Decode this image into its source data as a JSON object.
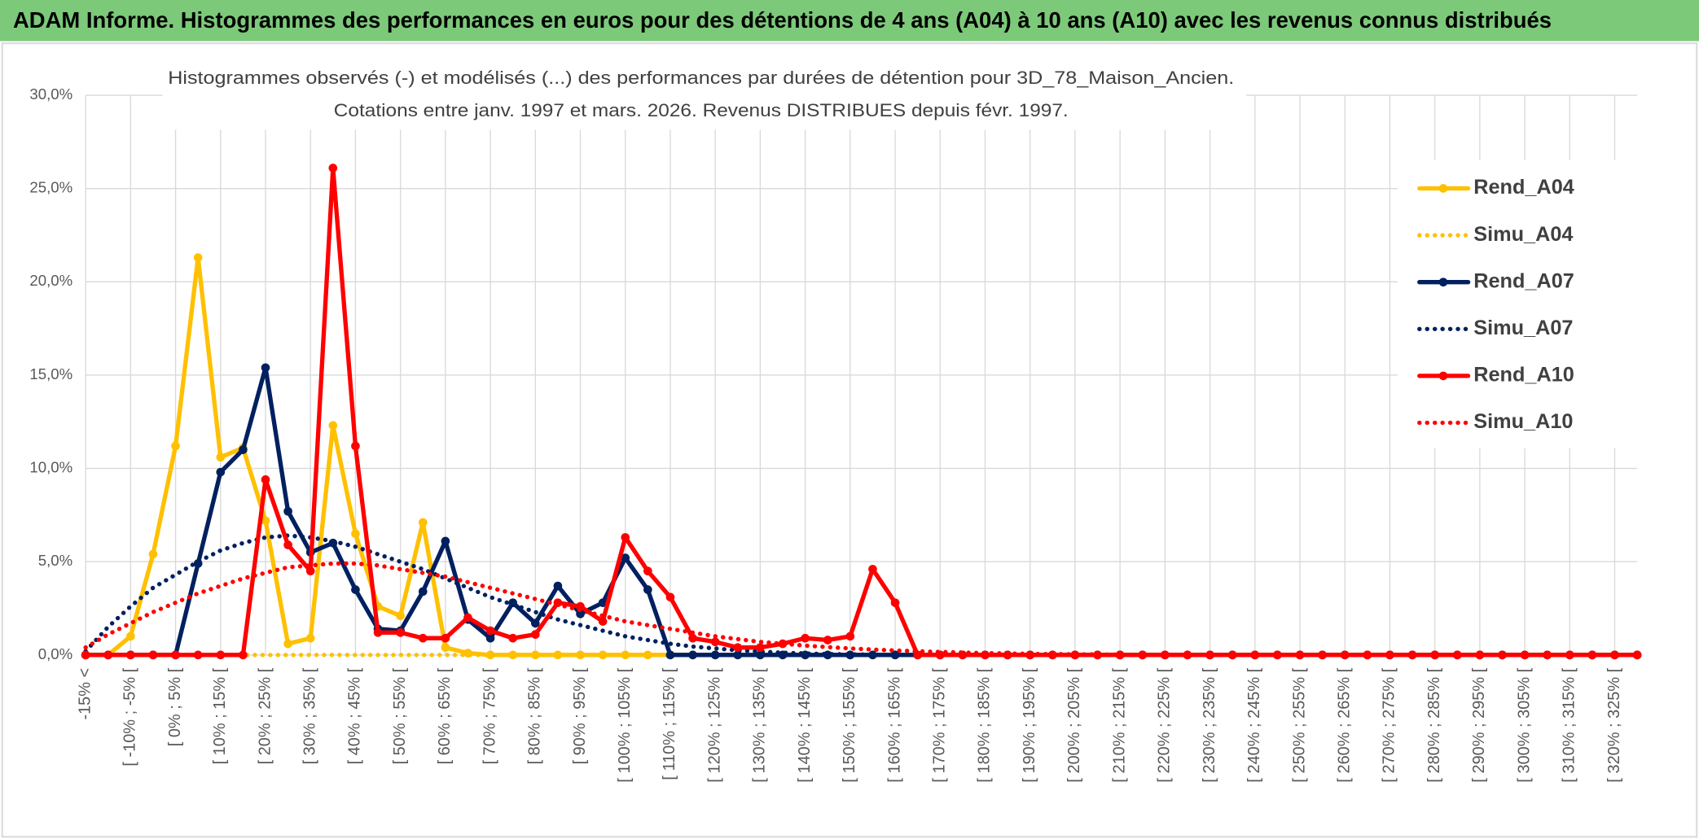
{
  "chart_data": {
    "type": "line",
    "title": "ADAM Informe. Histogrammes des performances en euros pour des détentions de 4 ans (A04) à 10 ans (A10) avec les revenus connus distribués",
    "subtitle": [
      "Histogrammes observés (-) et modélisés (...) des performances par durées de détention pour 3D_78_Maison_Ancien.",
      "Cotations entre janv. 1997 et mars. 2026. Revenus DISTRIBUES depuis févr. 1997."
    ],
    "categories": [
      "-15% <",
      null,
      "[ -10% ; -5% [",
      null,
      "[ 0% ; 5% [",
      null,
      "[ 10% ; 15% [",
      null,
      "[ 20% ; 25% [",
      null,
      "[ 30% ; 35% [",
      null,
      "[ 40% ; 45% [",
      null,
      "[ 50% ; 55% [",
      null,
      "[ 60% ; 65% [",
      null,
      "[ 70% ; 75% [",
      null,
      "[ 80% ; 85% [",
      null,
      "[ 90% ; 95% [",
      null,
      "[ 100% ; 105% [",
      null,
      "[ 110% ; 115% [",
      null,
      "[ 120% ; 125% [",
      null,
      "[ 130% ; 135% [",
      null,
      "[ 140% ; 145% [",
      null,
      "[ 150% ; 155% [",
      null,
      "[ 160% ; 165% [",
      null,
      "[ 170% ; 175% [",
      null,
      "[ 180% ; 185% [",
      null,
      "[ 190% ; 195% [",
      null,
      "[ 200% ; 205% [",
      null,
      "[ 210% ; 215% [",
      null,
      "[ 220% ; 225% [",
      null,
      "[ 230% ; 235% [",
      null,
      "[ 240% ; 245% [",
      null,
      "[ 250% ; 255% [",
      null,
      "[ 260% ; 265% [",
      null,
      "[ 270% ; 275% [",
      null,
      "[ 280% ; 285% [",
      null,
      "[ 290% ; 295% [",
      null,
      "[ 300% ; 305% [",
      null,
      "[ 310% ; 315% [",
      null,
      "[ 320% ; 325% [",
      null
    ],
    "series": [
      {
        "name": "Rend_A04",
        "color": "#ffc000",
        "line_style": "solid",
        "marker": true,
        "values": [
          0,
          0,
          1.0,
          5.4,
          11.2,
          21.3,
          10.6,
          11.1,
          7.2,
          0.6,
          0.9,
          12.3,
          6.5,
          2.6,
          2.1,
          7.1,
          0.4,
          0.1,
          0,
          0,
          0,
          0,
          0,
          0,
          0,
          0,
          0,
          0,
          0,
          0,
          0,
          0,
          0,
          0,
          0,
          0,
          0,
          0,
          0,
          0,
          0,
          0,
          0,
          0,
          0,
          0,
          0,
          0,
          0,
          0,
          0,
          0,
          0,
          0,
          0,
          0,
          0,
          0,
          0,
          0,
          0,
          0,
          0,
          0,
          0,
          0,
          0,
          0,
          0,
          0
        ]
      },
      {
        "name": "Simu_A04",
        "color": "#ffc000",
        "line_style": "dotted",
        "marker": false,
        "values": [
          0,
          0,
          0,
          0,
          0,
          0,
          0,
          0,
          0,
          0,
          0,
          0,
          0,
          0,
          0,
          0,
          0,
          0,
          0,
          0,
          0,
          0,
          0,
          0,
          0,
          0,
          0,
          0,
          0,
          0,
          0,
          0,
          0,
          0,
          0,
          0,
          0,
          0,
          0,
          0,
          0,
          0,
          0,
          0,
          0,
          0,
          0,
          0,
          0,
          0,
          0,
          0,
          0,
          0,
          0,
          0,
          0,
          0,
          0,
          0,
          0,
          0,
          0,
          0,
          0,
          0,
          0,
          0,
          0,
          0
        ]
      },
      {
        "name": "Rend_A07",
        "color": "#002060",
        "line_style": "solid",
        "marker": true,
        "values": [
          0,
          0,
          0,
          0,
          0,
          4.9,
          9.8,
          11.0,
          15.4,
          7.7,
          5.5,
          6.0,
          3.5,
          1.4,
          1.3,
          3.4,
          6.1,
          1.9,
          0.9,
          2.8,
          1.7,
          3.7,
          2.2,
          2.8,
          5.2,
          3.5,
          0,
          0,
          0,
          0,
          0,
          0,
          0,
          0,
          0,
          0,
          0,
          0,
          0,
          0,
          0,
          0,
          0,
          0,
          0,
          0,
          0,
          0,
          0,
          0,
          0,
          0,
          0,
          0,
          0,
          0,
          0,
          0,
          0,
          0,
          0,
          0,
          0,
          0,
          0,
          0,
          0,
          0,
          0,
          0
        ]
      },
      {
        "name": "Simu_A07",
        "color": "#002060",
        "line_style": "dotted",
        "marker": false,
        "values": [
          0.2,
          1.5,
          2.6,
          3.6,
          4.3,
          5.0,
          5.6,
          6.0,
          6.3,
          6.4,
          6.3,
          6.1,
          5.8,
          5.4,
          5.0,
          4.6,
          4.1,
          3.6,
          3.1,
          2.7,
          2.3,
          1.9,
          1.6,
          1.3,
          1.0,
          0.8,
          0.6,
          0.45,
          0.35,
          0.25,
          0.18,
          0.12,
          0.08,
          0.05,
          0.03,
          0.02,
          0,
          0,
          0,
          0,
          0,
          0,
          0,
          0,
          0,
          0,
          0,
          0,
          0,
          0,
          0,
          0,
          0,
          0,
          0,
          0,
          0,
          0,
          0,
          0,
          0,
          0,
          0,
          0,
          0,
          0,
          0,
          0,
          0,
          0
        ]
      },
      {
        "name": "Rend_A10",
        "color": "#ff0000",
        "line_style": "solid",
        "marker": true,
        "values": [
          0,
          0,
          0,
          0,
          0,
          0,
          0,
          0,
          9.4,
          5.9,
          4.5,
          26.1,
          11.2,
          1.2,
          1.2,
          0.9,
          0.9,
          2.0,
          1.3,
          0.9,
          1.1,
          2.8,
          2.6,
          1.8,
          6.3,
          4.5,
          3.1,
          0.9,
          0.7,
          0.4,
          0.4,
          0.6,
          0.9,
          0.8,
          1.0,
          4.6,
          2.8,
          0,
          0,
          0,
          0,
          0,
          0,
          0,
          0,
          0,
          0,
          0,
          0,
          0,
          0,
          0,
          0,
          0,
          0,
          0,
          0,
          0,
          0,
          0,
          0,
          0,
          0,
          0,
          0,
          0,
          0,
          0,
          0,
          0
        ]
      },
      {
        "name": "Simu_A10",
        "color": "#ff0000",
        "line_style": "dotted",
        "marker": false,
        "values": [
          0.4,
          1.1,
          1.7,
          2.3,
          2.8,
          3.3,
          3.7,
          4.1,
          4.4,
          4.7,
          4.8,
          4.9,
          4.9,
          4.8,
          4.6,
          4.4,
          4.2,
          3.9,
          3.6,
          3.3,
          3.0,
          2.7,
          2.4,
          2.1,
          1.8,
          1.6,
          1.4,
          1.2,
          1.0,
          0.85,
          0.7,
          0.6,
          0.5,
          0.42,
          0.35,
          0.29,
          0.24,
          0.2,
          0.16,
          0.13,
          0.1,
          0.08,
          0.06,
          0.05,
          0.04,
          0.03,
          0.02,
          0,
          0,
          0,
          0,
          0,
          0,
          0,
          0,
          0,
          0,
          0,
          0,
          0,
          0,
          0,
          0,
          0,
          0,
          0,
          0,
          0,
          0,
          0
        ]
      }
    ],
    "ylim": [
      0,
      30
    ],
    "yticks": [
      {
        "value": 0,
        "label": "0,0%"
      },
      {
        "value": 5,
        "label": "5,0%"
      },
      {
        "value": 10,
        "label": "10,0%"
      },
      {
        "value": 15,
        "label": "15,0%"
      },
      {
        "value": 20,
        "label": "20,0%"
      },
      {
        "value": 25,
        "label": "25,0%"
      },
      {
        "value": 30,
        "label": "30,0%"
      }
    ],
    "grid": true,
    "legend": "right",
    "title_background": "#7cc97a"
  }
}
